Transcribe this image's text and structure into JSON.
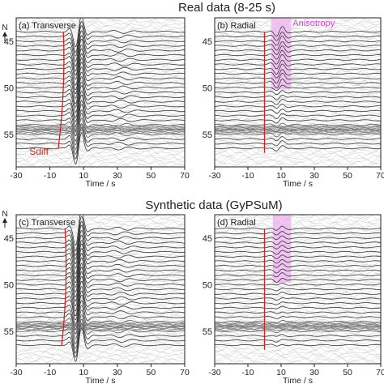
{
  "sections": [
    {
      "title": "Real data  (8-25 s)"
    },
    {
      "title": "Synthetic data (GyPSuM)"
    }
  ],
  "north_label": "N",
  "chart_data": [
    {
      "type": "line",
      "panel_label": "(a) Transverse",
      "xlabel": "Time / s",
      "xlim": [
        -30,
        70
      ],
      "xticks": [
        "-30",
        "-10",
        "10",
        "30",
        "50",
        "70"
      ],
      "yticks": [
        "45",
        "50",
        "55"
      ],
      "ylim": [
        58.5,
        42.5
      ],
      "trace_offsets": [
        44,
        44.5,
        45,
        45.5,
        46,
        46.5,
        47,
        47.5,
        48,
        48.5,
        49,
        49.5,
        50,
        50.5,
        51,
        51.5,
        52,
        52.5,
        53,
        53.5,
        54,
        54.5,
        55,
        55.5,
        56,
        56.5
      ],
      "phase_line": {
        "label": "Sdiff",
        "color": "#d22222",
        "time_top": -2,
        "time_bottom": -5
      },
      "waveform": {
        "kind": "transverse",
        "center_time": 7,
        "amplitude": 2.2
      }
    },
    {
      "type": "line",
      "panel_label": "(b) Radial",
      "xlabel": "Time / s",
      "xlim": [
        -30,
        70
      ],
      "xticks": [
        "-30",
        "-10",
        "10",
        "30",
        "50",
        "70"
      ],
      "yticks": [
        "45",
        "50",
        "55"
      ],
      "ylim": [
        58.5,
        42.5
      ],
      "trace_offsets": [
        44,
        44.5,
        45,
        45.5,
        46,
        46.5,
        47,
        47.5,
        48,
        48.5,
        49,
        49.5,
        50,
        50.5,
        51,
        51.5,
        52,
        52.5,
        53,
        53.5,
        54,
        54.5,
        55,
        55.5,
        56,
        56.5
      ],
      "phase_line": {
        "label": "",
        "color": "#d22222",
        "time_top": 0,
        "time_bottom": 0
      },
      "highlight": {
        "label": "Anisotropy",
        "color": "#f3a6f3",
        "time_range": [
          4,
          16
        ],
        "offset_range": [
          42.5,
          50.2
        ]
      },
      "waveform": {
        "kind": "radial",
        "center_time": 9,
        "amplitude": 0.55
      }
    },
    {
      "type": "line",
      "panel_label": "(c) Transverse",
      "xlabel": "Time / s",
      "xlim": [
        -30,
        70
      ],
      "xticks": [
        "-30",
        "-10",
        "10",
        "30",
        "50",
        "70"
      ],
      "yticks": [
        "45",
        "50",
        "55"
      ],
      "ylim": [
        58.5,
        42.5
      ],
      "trace_offsets": [
        44,
        44.5,
        45,
        45.5,
        46,
        46.5,
        47,
        47.5,
        48,
        48.5,
        49,
        49.5,
        50,
        50.5,
        51,
        51.5,
        52,
        52.5,
        53,
        53.5,
        54,
        54.5,
        55,
        55.5,
        56,
        56.5
      ],
      "phase_line": {
        "label": "",
        "color": "#d22222",
        "time_top": -1,
        "time_bottom": -3
      },
      "waveform": {
        "kind": "transverse",
        "center_time": 7,
        "amplitude": 2.4
      }
    },
    {
      "type": "line",
      "panel_label": "(d) Radial",
      "xlabel": "Time / s",
      "xlim": [
        -30,
        70
      ],
      "xticks": [
        "-30",
        "-10",
        "10",
        "30",
        "50",
        "70"
      ],
      "yticks": [
        "45",
        "50",
        "55"
      ],
      "ylim": [
        58.5,
        42.5
      ],
      "trace_offsets": [
        44,
        44.5,
        45,
        45.5,
        46,
        46.5,
        47,
        47.5,
        48,
        48.5,
        49,
        49.5,
        50,
        50.5,
        51,
        51.5,
        52,
        52.5,
        53,
        53.5,
        54,
        54.5,
        55,
        55.5,
        56,
        56.5
      ],
      "phase_line": {
        "label": "",
        "color": "#d22222",
        "time_top": 0,
        "time_bottom": 0
      },
      "highlight": {
        "label": "",
        "color": "#f3a6f3",
        "time_range": [
          5,
          16
        ],
        "offset_range": [
          42.5,
          49.8
        ]
      },
      "waveform": {
        "kind": "radial",
        "center_time": 9,
        "amplitude": 0.25
      }
    }
  ]
}
